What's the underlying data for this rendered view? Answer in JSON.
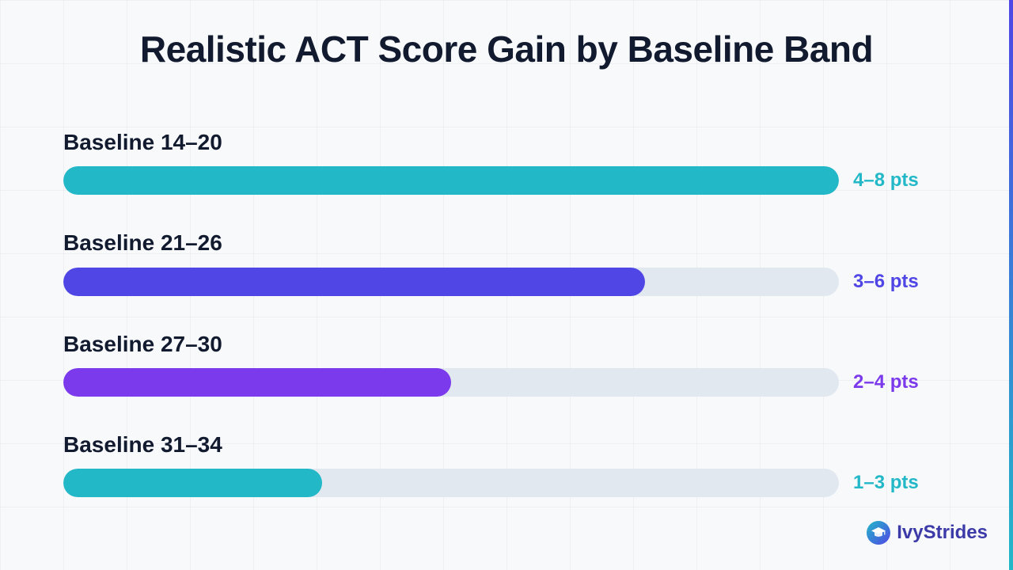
{
  "chart_data": {
    "type": "bar",
    "orientation": "horizontal",
    "title": "Realistic ACT Score Gain by Baseline Band",
    "categories": [
      "Baseline 14–20",
      "Baseline 21–26",
      "Baseline 27–30",
      "Baseline 31–34"
    ],
    "value_labels": [
      "4–8 pts",
      "3–6 pts",
      "2–4 pts",
      "1–3 pts"
    ],
    "values": [
      8,
      6,
      4,
      2.67
    ],
    "xlim": [
      0,
      8
    ],
    "colors": [
      "#22b8c8",
      "#4f46e5",
      "#7c3aed",
      "#22b8c8"
    ],
    "grid": true,
    "legend": "none"
  },
  "brand": {
    "name": "IvyStrides",
    "icon": "graduation-cap-icon",
    "colors": [
      "#22b8c8",
      "#4f46e5"
    ]
  },
  "theme": {
    "background": "#f8f9fb",
    "track": "#e2e8f0",
    "text": "#111a2e"
  }
}
